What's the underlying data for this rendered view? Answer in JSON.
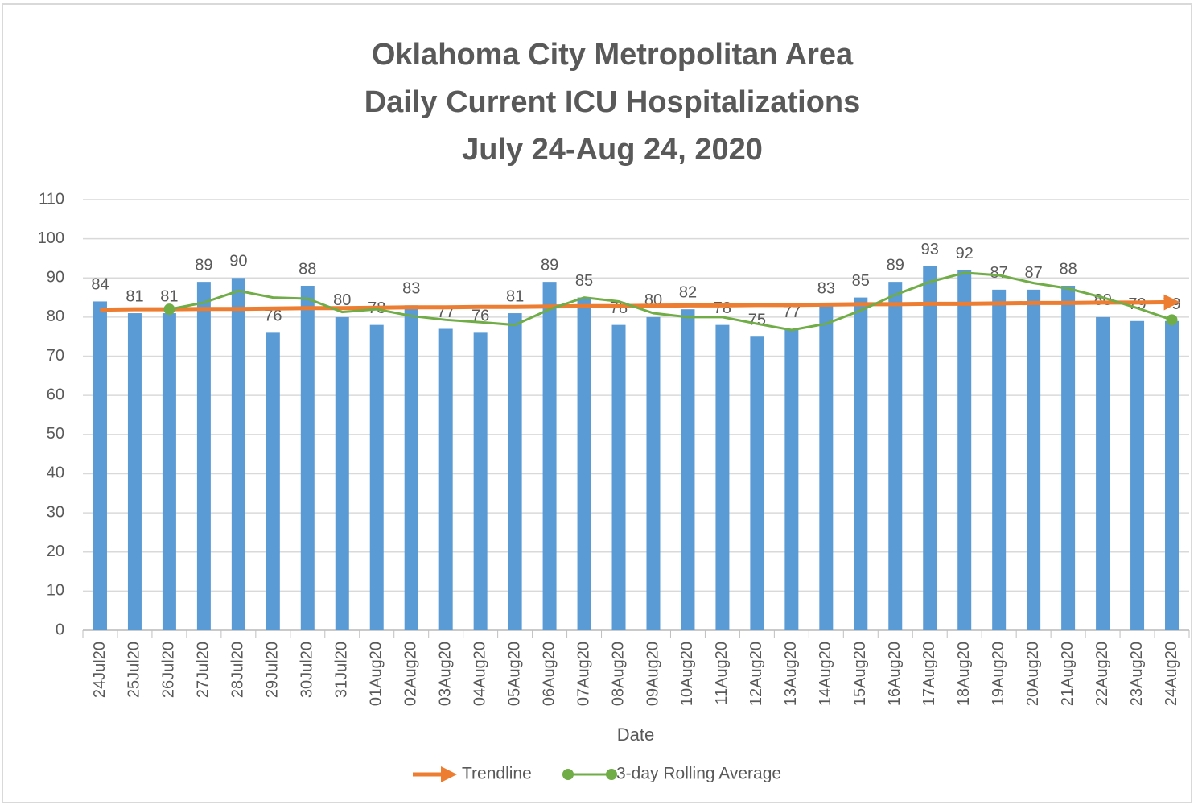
{
  "chart_data": {
    "type": "bar",
    "title": [
      "Oklahoma City Metropolitan Area",
      "Daily Current ICU Hospitalizations",
      "July 24-Aug 24, 2020"
    ],
    "x_label": "Date",
    "categories": [
      "24Jul20",
      "25Jul20",
      "26Jul20",
      "27Jul20",
      "28Jul20",
      "29Jul20",
      "30Jul20",
      "31Jul20",
      "01Aug20",
      "02Aug20",
      "03Aug20",
      "04Aug20",
      "05Aug20",
      "06Aug20",
      "07Aug20",
      "08Aug20",
      "09Aug20",
      "10Aug20",
      "11Aug20",
      "12Aug20",
      "13Aug20",
      "14Aug20",
      "15Aug20",
      "16Aug20",
      "17Aug20",
      "18Aug20",
      "19Aug20",
      "20Aug20",
      "21Aug20",
      "22Aug20",
      "23Aug20",
      "24Aug20"
    ],
    "values": [
      84,
      81,
      81,
      89,
      90,
      76,
      88,
      80,
      78,
      83,
      77,
      76,
      81,
      89,
      85,
      78,
      80,
      82,
      78,
      75,
      77,
      83,
      85,
      89,
      93,
      92,
      87,
      87,
      88,
      80,
      79,
      79
    ],
    "color": "#5b9bd5",
    "series": [
      {
        "name": "Trendline",
        "type": "line",
        "arrow": true,
        "color": "#ed7d31",
        "values": [
          81.9,
          82.0,
          82.0,
          82.1,
          82.1,
          82.2,
          82.3,
          82.3,
          82.4,
          82.5,
          82.5,
          82.6,
          82.6,
          82.7,
          82.8,
          82.8,
          82.9,
          83.0,
          83.0,
          83.1,
          83.1,
          83.2,
          83.3,
          83.3,
          83.4,
          83.4,
          83.5,
          83.6,
          83.6,
          83.7,
          83.7,
          83.8
        ]
      },
      {
        "name": "3-day Rolling Average",
        "type": "line",
        "color": "#70ad47",
        "values": [
          null,
          null,
          82.0,
          83.7,
          86.7,
          85.0,
          84.7,
          81.3,
          82.0,
          80.3,
          79.3,
          78.7,
          78.0,
          82.0,
          85.0,
          84.0,
          81.0,
          80.0,
          80.0,
          78.3,
          76.7,
          78.3,
          81.7,
          85.7,
          89.0,
          91.3,
          90.7,
          88.7,
          87.3,
          85.0,
          82.3,
          79.3
        ]
      }
    ],
    "ylim": [
      0,
      110
    ],
    "yticks": [
      0,
      10,
      20,
      30,
      40,
      50,
      60,
      70,
      80,
      90,
      100,
      110
    ],
    "grid": true,
    "legend": "bottom"
  }
}
